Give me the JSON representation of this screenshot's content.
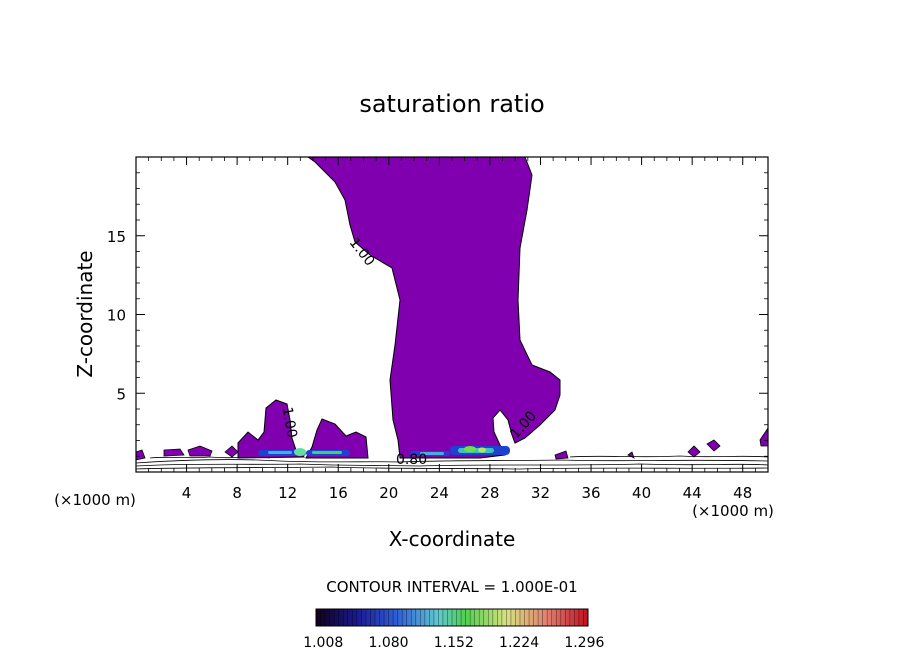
{
  "chart_data": {
    "type": "contour",
    "title": "saturation ratio",
    "xlabel": "X-coordinate",
    "ylabel": "Z-coordinate",
    "x_unit_label": "(×1000 m)",
    "x_unit_label_right": "(×1000 m)",
    "xlim": [
      0,
      50
    ],
    "ylim": [
      0,
      20
    ],
    "x_ticks": [
      4,
      8,
      12,
      16,
      20,
      24,
      28,
      32,
      36,
      40,
      44,
      48
    ],
    "y_ticks": [
      5,
      10,
      15
    ],
    "contour_interval_text": "CONTOUR INTERVAL = 1.000E-01",
    "contour_labels": [
      {
        "text": "1.00",
        "x": 17.6,
        "z": 13.8,
        "angle": 52
      },
      {
        "text": "1.00",
        "x": 11.8,
        "z": 3.1,
        "angle": 80
      },
      {
        "text": "1.00",
        "x": 30.9,
        "z": 2.8,
        "angle": -48
      },
      {
        "text": "0.80",
        "x": 21.8,
        "z": 0.5,
        "angle": 0
      }
    ],
    "fill_color": "#8000b0",
    "colorbar": {
      "ticks": [
        "1.008",
        "1.080",
        "1.152",
        "1.224",
        "1.296"
      ],
      "range": [
        1.0,
        1.3
      ]
    },
    "grid": false
  }
}
